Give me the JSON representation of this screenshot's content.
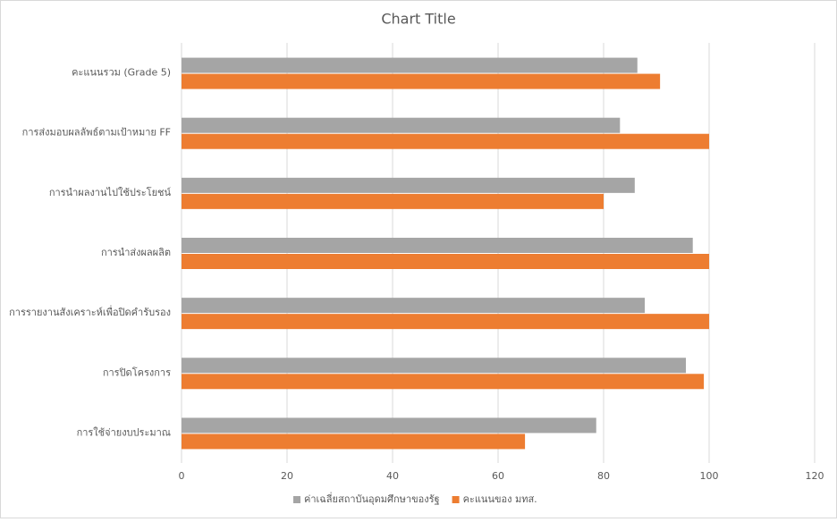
{
  "chart_data": {
    "type": "hbar",
    "title": "Chart Title",
    "categories": [
      "คะแนนรวม (Grade 5)",
      "การส่งมอบผลลัพธ์ตามเป้าหมาย FF",
      "การนำผลงานไปใช้ประโยชน์",
      "การนำส่งผลผลิต",
      "การรายงานสังเคราะห์เพื่อปิดคำรับรอง",
      "การปิดโครงการ",
      "การใช้จ่ายงบประมาณ"
    ],
    "series": [
      {
        "name": "ค่าเฉลี่ยสถาบันอุดมศึกษาของรัฐ",
        "color": "#a5a5a5",
        "values": [
          86.4,
          83.1,
          85.9,
          96.9,
          87.8,
          95.6,
          78.6
        ]
      },
      {
        "name": "คะแนนของ มทส.",
        "color": "#ed7d31",
        "values": [
          90.7,
          100,
          80,
          100,
          100,
          99,
          65.1
        ]
      }
    ],
    "xlim": [
      0,
      120
    ],
    "xticks": [
      0,
      20,
      40,
      60,
      80,
      100,
      120
    ],
    "grid": true,
    "legend": "bottom"
  }
}
